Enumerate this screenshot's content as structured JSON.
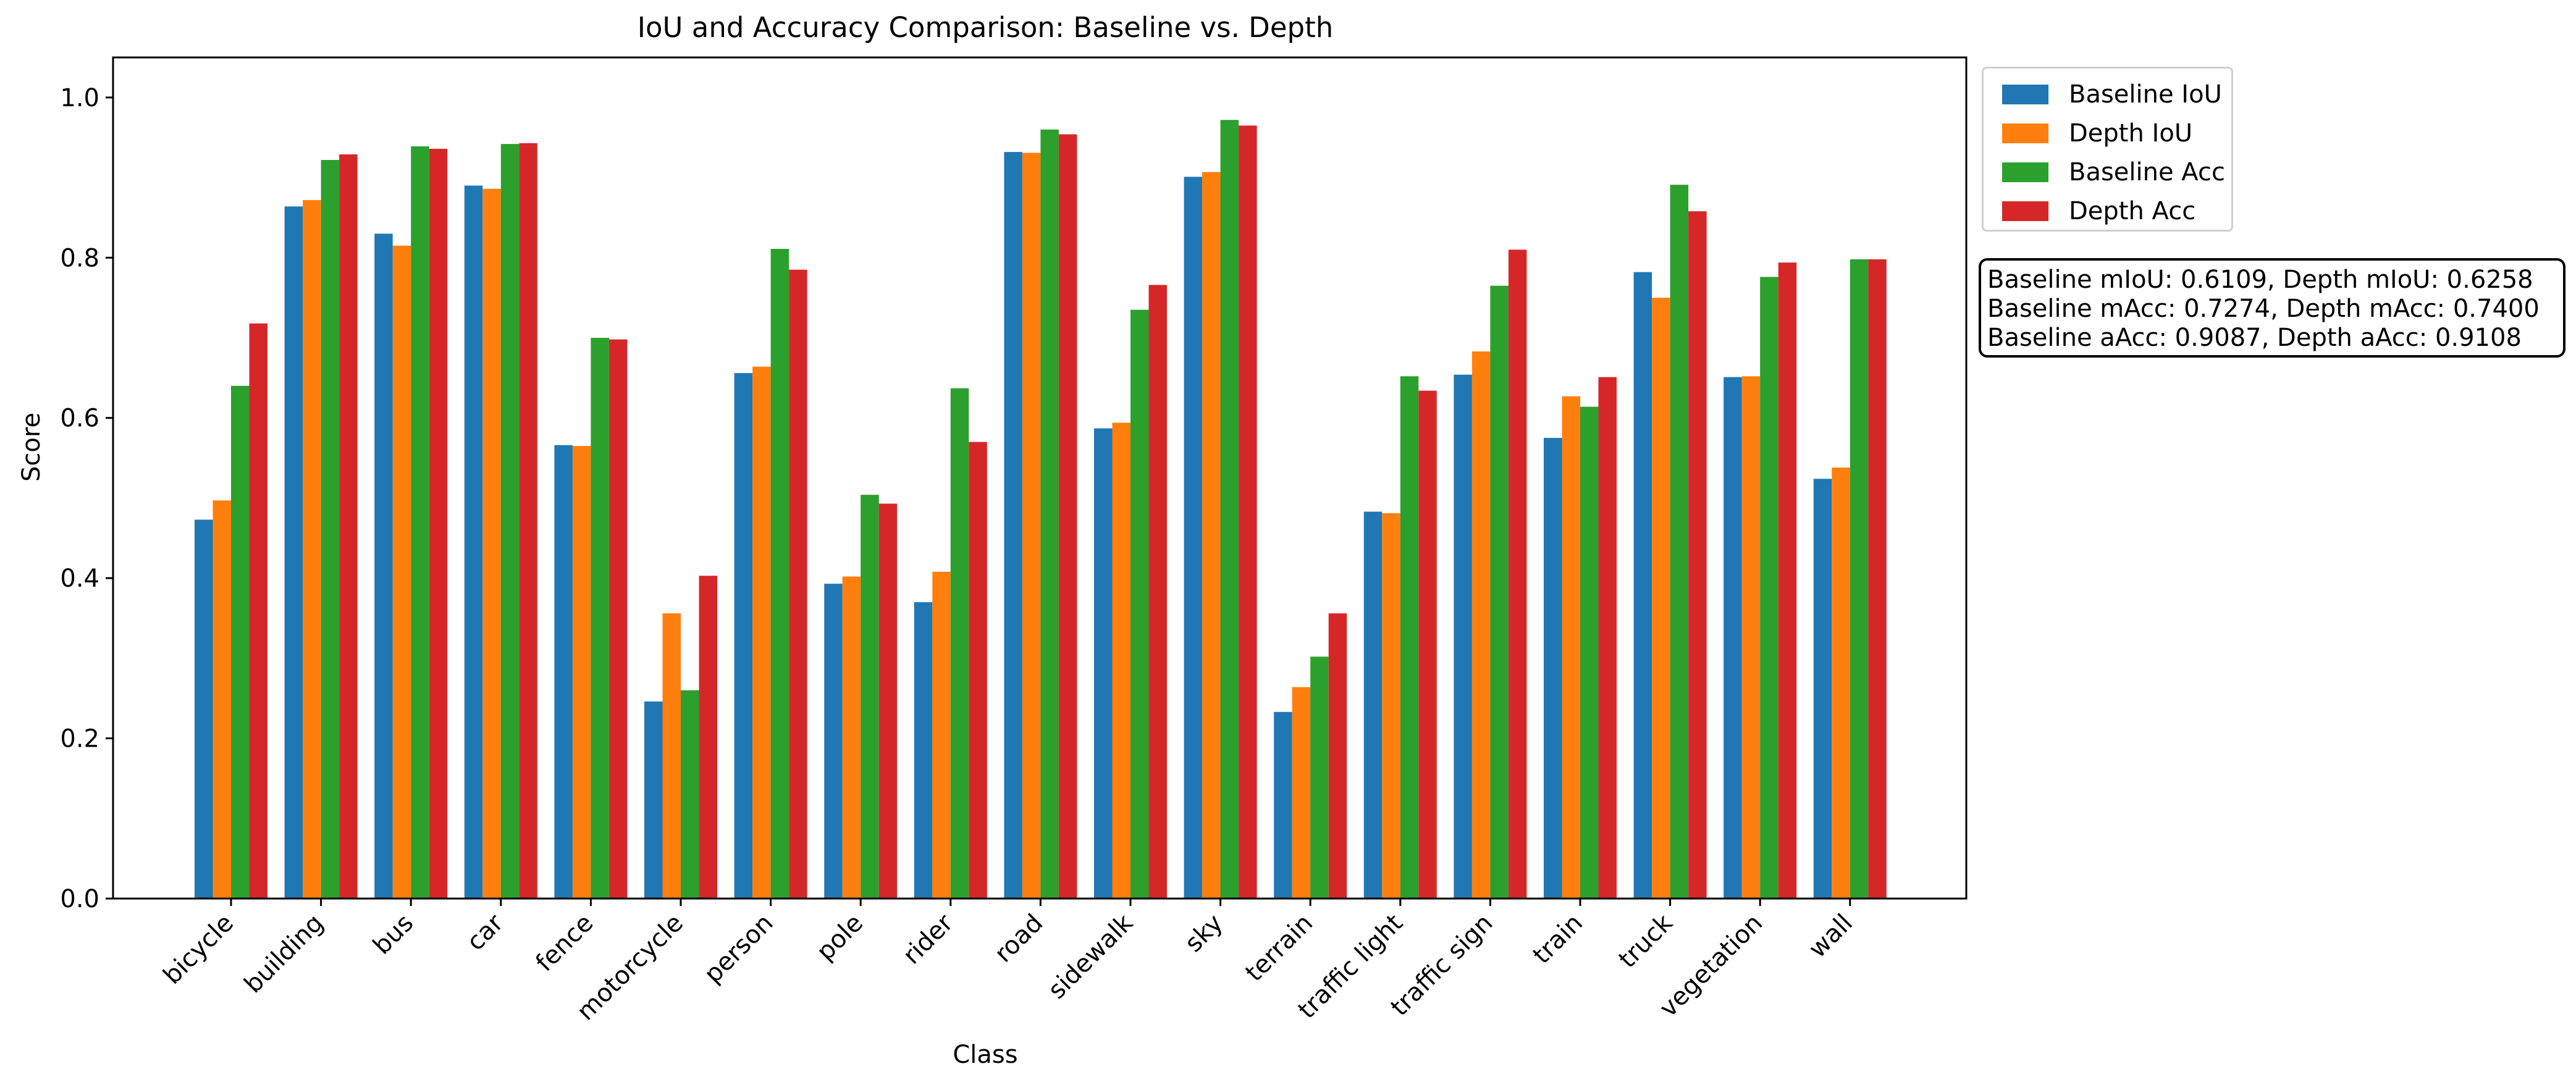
{
  "chart_data": {
    "type": "bar",
    "title": "IoU and Accuracy Comparison: Baseline vs. Depth",
    "xlabel": "Class",
    "ylabel": "Score",
    "ylim": [
      0,
      1.05
    ],
    "yticks": [
      "0.0",
      "0.2",
      "0.4",
      "0.6",
      "0.8",
      "1.0"
    ],
    "grid": false,
    "legend_position": "outside top-right",
    "categories": [
      "bicycle",
      "building",
      "bus",
      "car",
      "fence",
      "motorcycle",
      "person",
      "pole",
      "rider",
      "road",
      "sidewalk",
      "sky",
      "terrain",
      "traffic light",
      "traffic sign",
      "train",
      "truck",
      "vegetation",
      "wall"
    ],
    "series": [
      {
        "name": "Baseline IoU",
        "color": "#1f77b4",
        "values": [
          0.473,
          0.864,
          0.83,
          0.89,
          0.566,
          0.246,
          0.656,
          0.393,
          0.37,
          0.932,
          0.587,
          0.901,
          0.233,
          0.483,
          0.654,
          0.575,
          0.782,
          0.651,
          0.524
        ]
      },
      {
        "name": "Depth IoU",
        "color": "#ff7f0e",
        "values": [
          0.497,
          0.872,
          0.815,
          0.886,
          0.565,
          0.356,
          0.664,
          0.402,
          0.408,
          0.931,
          0.594,
          0.907,
          0.264,
          0.481,
          0.683,
          0.627,
          0.75,
          0.652,
          0.538
        ]
      },
      {
        "name": "Baseline Acc",
        "color": "#2ca02c",
        "values": [
          0.64,
          0.922,
          0.939,
          0.942,
          0.7,
          0.26,
          0.811,
          0.504,
          0.637,
          0.96,
          0.735,
          0.972,
          0.302,
          0.652,
          0.765,
          0.614,
          0.891,
          0.776,
          0.798
        ]
      },
      {
        "name": "Depth Acc",
        "color": "#d62728",
        "values": [
          0.718,
          0.929,
          0.936,
          0.943,
          0.698,
          0.403,
          0.785,
          0.493,
          0.57,
          0.954,
          0.766,
          0.965,
          0.356,
          0.634,
          0.81,
          0.651,
          0.858,
          0.794,
          0.798
        ]
      }
    ],
    "annotation": [
      "Baseline mIoU: 0.6109, Depth mIoU: 0.6258",
      "Baseline mAcc: 0.7274, Depth mAcc: 0.7400",
      "Baseline aAcc: 0.9087, Depth aAcc: 0.9108"
    ]
  }
}
